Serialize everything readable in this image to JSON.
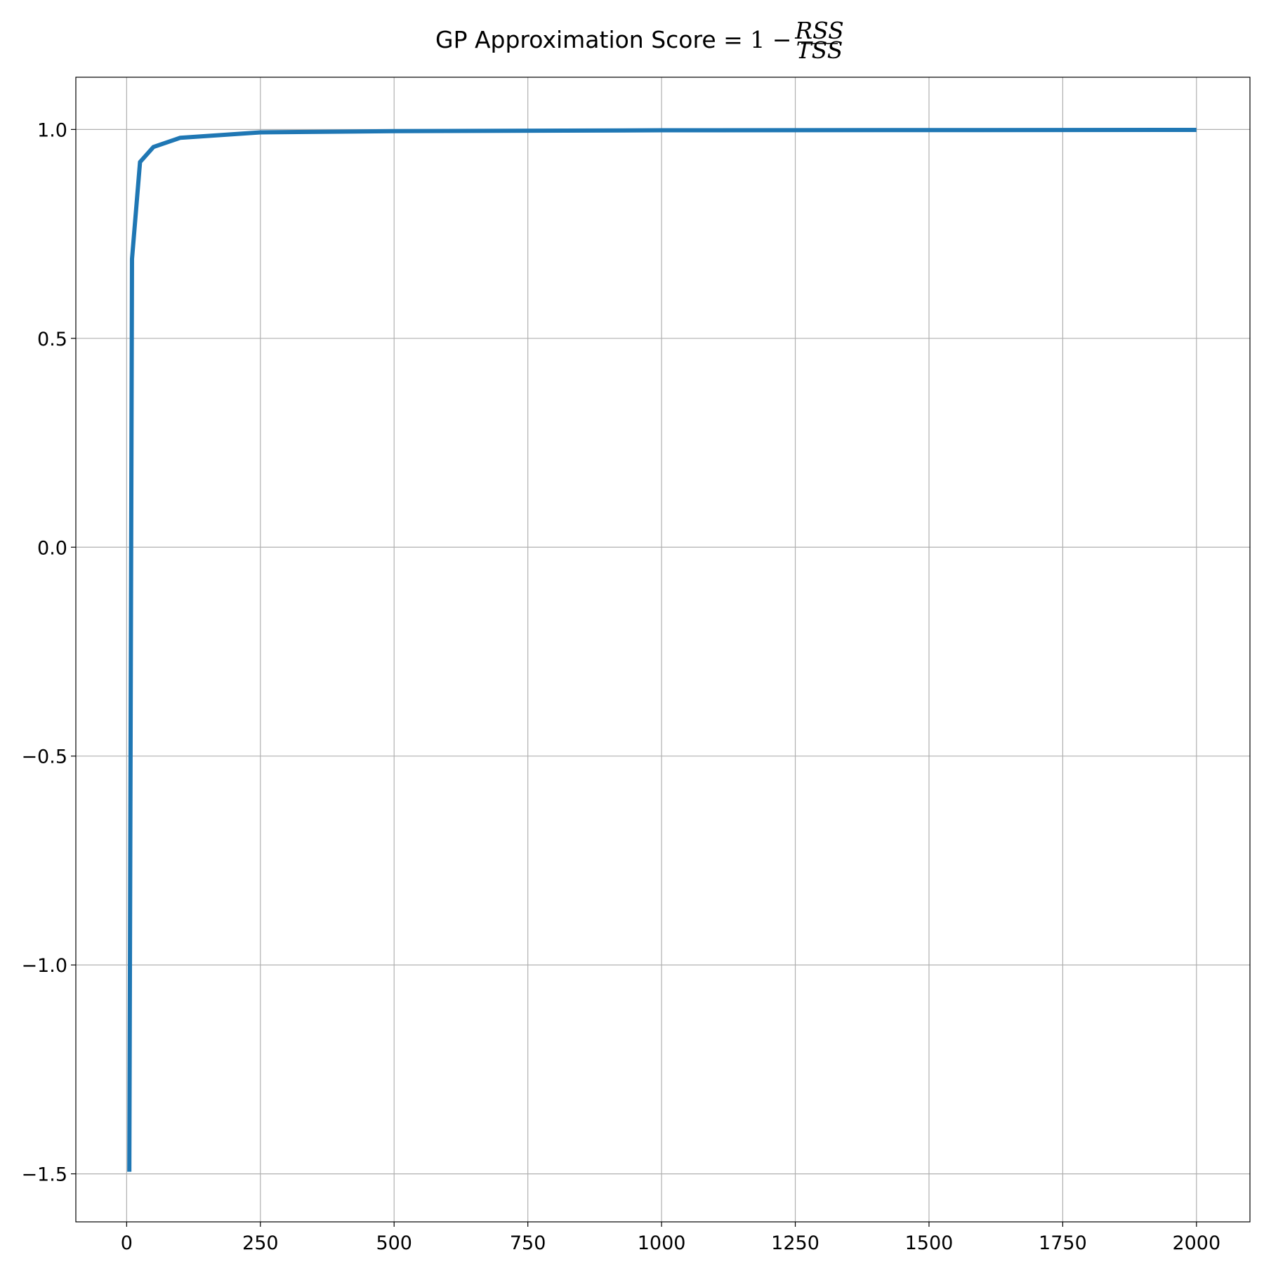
{
  "chart_data": {
    "type": "line",
    "title": {
      "prefix": "GP Approximation Score ",
      "formula": "= 1 −",
      "numerator": "RSS",
      "denominator": "TSS"
    },
    "xlabel": "",
    "ylabel": "",
    "xlim": [
      -95,
      2100
    ],
    "ylim": [
      -1.615,
      1.125
    ],
    "grid": true,
    "xticks": [
      0,
      250,
      500,
      750,
      1000,
      1250,
      1500,
      1750,
      2000
    ],
    "xtick_labels": [
      "0",
      "250",
      "500",
      "750",
      "1000",
      "1250",
      "1500",
      "1750",
      "2000"
    ],
    "yticks": [
      1.0,
      0.5,
      0.0,
      -0.5,
      -1.0,
      -1.5
    ],
    "ytick_labels": [
      "1.0",
      "0.5",
      "0.0",
      "−0.5",
      "−1.0",
      "−1.5"
    ],
    "series": [
      {
        "color": "#1f77b4",
        "x": [
          5,
          10,
          25,
          50,
          100,
          250,
          500,
          1000,
          2000
        ],
        "y": [
          -1.495,
          0.69,
          0.922,
          0.958,
          0.98,
          0.993,
          0.996,
          0.998,
          0.999
        ]
      }
    ]
  }
}
